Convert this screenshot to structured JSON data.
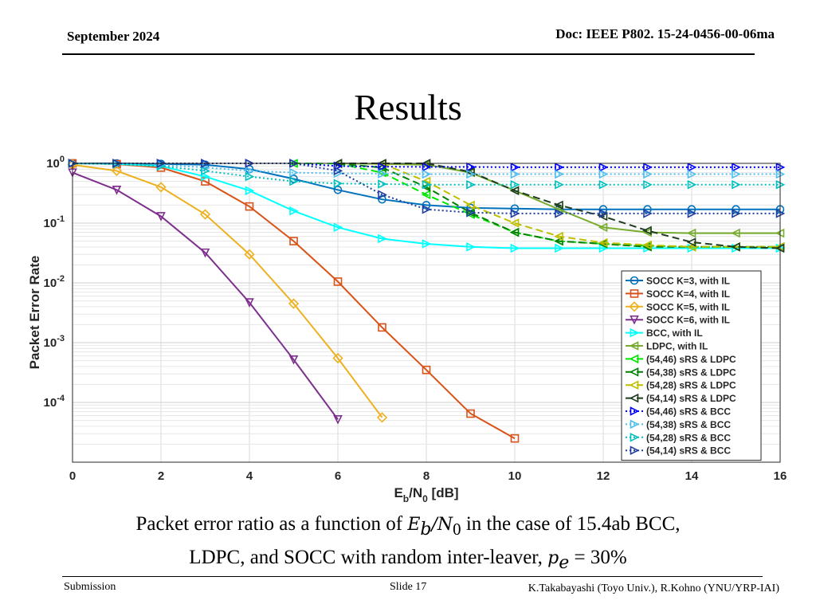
{
  "header": {
    "date": "September 2024",
    "doc_id": "Doc: IEEE P802. 15-24-0456-00-06ma"
  },
  "slide_title": "Results",
  "chart_data": {
    "type": "line",
    "title": "",
    "ylabel": "Packet Error Rate",
    "xlabel": {
      "E": "E",
      "b": "b",
      "slash": "/N",
      "zero": "0",
      "unit": " [dB]"
    },
    "xlim": [
      0,
      16
    ],
    "ylim": [
      1e-05,
      1
    ],
    "y_scale": "log",
    "grid": true,
    "legend_position": "bottom-right",
    "xticks": [
      "0",
      "2",
      "4",
      "6",
      "8",
      "10",
      "12",
      "14",
      "16"
    ],
    "yticks": [
      {
        "base": "10",
        "exp": "0",
        "value": 1
      },
      {
        "base": "10",
        "exp": "-1",
        "value": 0.1
      },
      {
        "base": "10",
        "exp": "-2",
        "value": 0.01
      },
      {
        "base": "10",
        "exp": "-3",
        "value": 0.001
      },
      {
        "base": "10",
        "exp": "-4",
        "value": 0.0001
      }
    ],
    "series": [
      {
        "name": "SOCC K=3, with IL",
        "color": "#0072BD",
        "dash": "solid",
        "marker": "circle",
        "x": [
          0,
          1,
          2,
          3,
          4,
          5,
          6,
          7,
          8,
          9,
          10,
          11,
          12,
          13,
          14,
          15,
          16
        ],
        "y": [
          1.0,
          1.0,
          0.98,
          0.95,
          0.8,
          0.55,
          0.36,
          0.25,
          0.2,
          0.18,
          0.175,
          0.17,
          0.17,
          0.17,
          0.17,
          0.17,
          0.17
        ]
      },
      {
        "name": "SOCC K=4, with IL",
        "color": "#D95319",
        "dash": "solid",
        "marker": "square",
        "x": [
          0,
          1,
          2,
          3,
          4,
          5,
          6,
          7,
          8,
          9,
          10
        ],
        "y": [
          1.0,
          0.97,
          0.85,
          0.5,
          0.19,
          0.05,
          0.0105,
          0.0018,
          0.00035,
          6.5e-05,
          2.5e-05
        ]
      },
      {
        "name": "SOCC K=5, with IL",
        "color": "#EDB120",
        "dash": "solid",
        "marker": "diamond",
        "x": [
          0,
          1,
          2,
          3,
          4,
          5,
          6,
          7
        ],
        "y": [
          0.95,
          0.75,
          0.4,
          0.14,
          0.03,
          0.0045,
          0.00055,
          5.6e-05
        ]
      },
      {
        "name": "SOCC K=6, with IL",
        "color": "#7E2F8E",
        "dash": "solid",
        "marker": "triangle-down",
        "x": [
          0,
          1,
          2,
          3,
          4,
          5,
          6
        ],
        "y": [
          0.7,
          0.36,
          0.13,
          0.032,
          0.0047,
          0.00052,
          5.2e-05
        ]
      },
      {
        "name": "BCC, with IL",
        "color": "#00FFFF",
        "dash": "solid",
        "marker": "triangle-right",
        "x": [
          0,
          1,
          2,
          3,
          4,
          5,
          6,
          7,
          8,
          9,
          10,
          11,
          12,
          13,
          14,
          15,
          16
        ],
        "y": [
          1.0,
          0.98,
          0.9,
          0.6,
          0.35,
          0.16,
          0.085,
          0.055,
          0.045,
          0.04,
          0.038,
          0.038,
          0.038,
          0.038,
          0.038,
          0.038,
          0.038
        ]
      },
      {
        "name": "LDPC, with IL",
        "color": "#77AC30",
        "dash": "solid",
        "marker": "triangle-left",
        "x": [
          6,
          7,
          8,
          9,
          10,
          11,
          12,
          13,
          14,
          15,
          16
        ],
        "y": [
          1.0,
          0.98,
          0.95,
          0.7,
          0.35,
          0.17,
          0.085,
          0.07,
          0.068,
          0.068,
          0.068
        ]
      },
      {
        "name": "(54,46) sRS & LDPC",
        "color": "#00E600",
        "dash": "dashed",
        "marker": "triangle-left",
        "x": [
          5,
          6,
          7,
          8,
          9,
          10,
          11,
          12,
          13,
          14,
          15,
          16
        ],
        "y": [
          1.0,
          0.99,
          0.7,
          0.3,
          0.14,
          0.07,
          0.05,
          0.045,
          0.042,
          0.04,
          0.04,
          0.04
        ]
      },
      {
        "name": "(54,38) sRS & LDPC",
        "color": "#008000",
        "dash": "dashed",
        "marker": "triangle-left",
        "x": [
          6,
          7,
          8,
          9,
          10,
          11,
          12,
          13,
          14,
          15,
          16
        ],
        "y": [
          0.99,
          0.85,
          0.4,
          0.15,
          0.07,
          0.05,
          0.045,
          0.04,
          0.04,
          0.04,
          0.04
        ]
      },
      {
        "name": "(54,28) sRS & LDPC",
        "color": "#BFBF00",
        "dash": "dashed",
        "marker": "triangle-left",
        "x": [
          6,
          7,
          8,
          9,
          10,
          11,
          12,
          13,
          14,
          15,
          16
        ],
        "y": [
          1.0,
          0.99,
          0.5,
          0.2,
          0.1,
          0.06,
          0.047,
          0.043,
          0.04,
          0.04,
          0.04
        ]
      },
      {
        "name": "(54,14) sRS & LDPC",
        "color": "#1E3C1E",
        "dash": "dashed",
        "marker": "triangle-left",
        "x": [
          6,
          7,
          8,
          9,
          10,
          11,
          12,
          13,
          14,
          15,
          16
        ],
        "y": [
          1.0,
          1.0,
          1.0,
          0.72,
          0.35,
          0.2,
          0.13,
          0.075,
          0.048,
          0.04,
          0.038
        ]
      },
      {
        "name": "(54,46) sRS & BCC",
        "color": "#0000FF",
        "dash": "dotted",
        "marker": "triangle-right",
        "x": [
          0,
          1,
          2,
          3,
          4,
          5,
          6,
          7,
          8,
          9,
          10,
          11,
          12,
          13,
          14,
          15,
          16
        ],
        "y": [
          1.0,
          1.0,
          1.0,
          1.0,
          1.0,
          1.0,
          0.9,
          0.88,
          0.87,
          0.87,
          0.86,
          0.86,
          0.86,
          0.86,
          0.86,
          0.86,
          0.86
        ]
      },
      {
        "name": "(54,38) sRS & BCC",
        "color": "#4DBEEE",
        "dash": "dotted",
        "marker": "triangle-right",
        "x": [
          0,
          1,
          2,
          3,
          4,
          5,
          6,
          7,
          8,
          9,
          10,
          11,
          12,
          13,
          14,
          15,
          16
        ],
        "y": [
          1.0,
          1.0,
          0.95,
          0.85,
          0.75,
          0.7,
          0.68,
          0.67,
          0.66,
          0.66,
          0.66,
          0.66,
          0.66,
          0.66,
          0.66,
          0.66,
          0.66
        ]
      },
      {
        "name": "(54,28) sRS & BCC",
        "color": "#00BFBF",
        "dash": "dotted",
        "marker": "triangle-right",
        "x": [
          0,
          1,
          2,
          3,
          4,
          5,
          6,
          7,
          8,
          9,
          10,
          11,
          12,
          13,
          14,
          15,
          16
        ],
        "y": [
          1.0,
          0.98,
          0.9,
          0.75,
          0.6,
          0.5,
          0.46,
          0.45,
          0.44,
          0.44,
          0.44,
          0.44,
          0.44,
          0.44,
          0.44,
          0.44,
          0.44
        ]
      },
      {
        "name": "(54,14) sRS & BCC",
        "color": "#1F3FA0",
        "dash": "dotted",
        "marker": "triangle-right",
        "x": [
          0,
          1,
          2,
          3,
          4,
          5,
          6,
          7,
          8,
          9,
          10,
          11,
          12,
          13,
          14,
          15,
          16
        ],
        "y": [
          1.0,
          1.0,
          1.0,
          1.0,
          1.0,
          1.0,
          0.75,
          0.3,
          0.17,
          0.15,
          0.145,
          0.145,
          0.145,
          0.145,
          0.145,
          0.145,
          0.145
        ]
      }
    ]
  },
  "caption": {
    "line1_a": "Packet error ratio as a function of ",
    "eb": "E",
    "eb_sub": "b",
    "slash_n": "/N",
    "n_sub": "0",
    "line1_b": " in the case of 15.4ab BCC,",
    "line2_a": "LDPC, and SOCC with random inter-leaver, ",
    "pe": "p",
    "pe_sub": "e",
    "pe_value": " = 30%"
  },
  "footer": {
    "left": "Submission",
    "slide": "Slide 17",
    "authors": "K.Takabayashi (Toyo Univ.), R.Kohno (YNU/YRP-IAI)"
  }
}
